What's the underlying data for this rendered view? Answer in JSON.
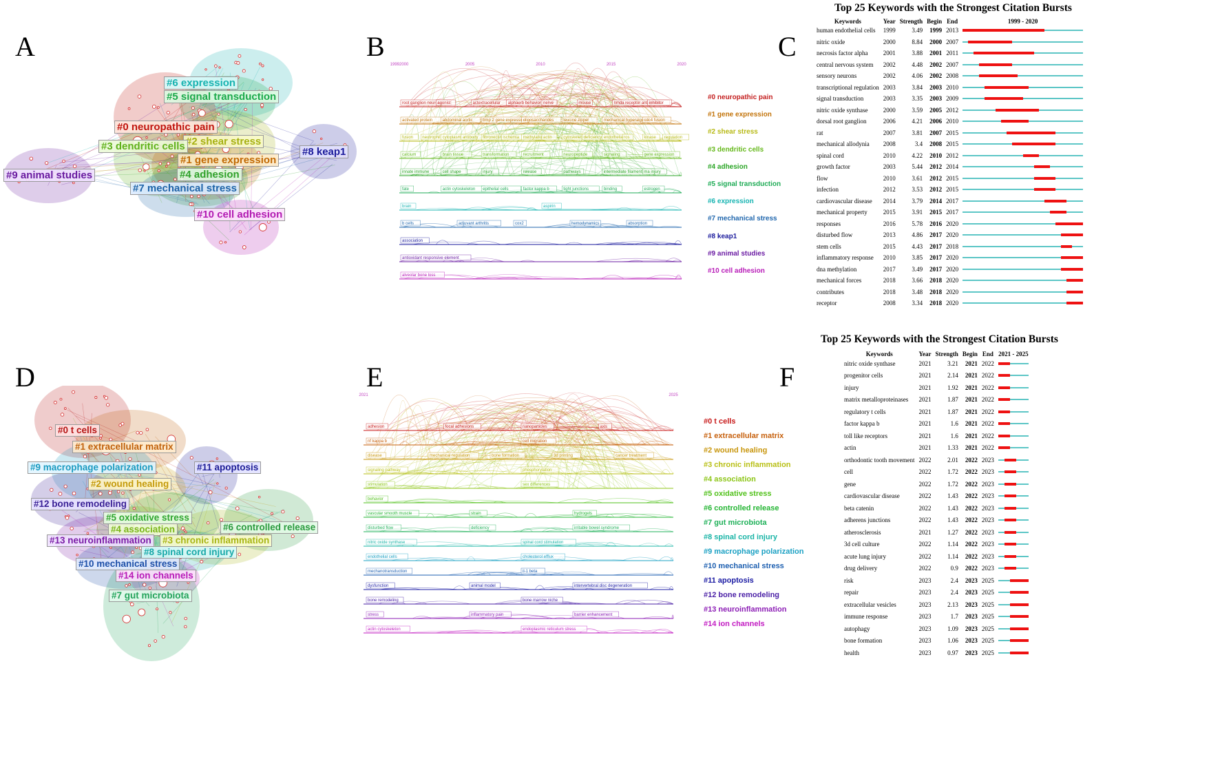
{
  "panels": {
    "A": {
      "letter": "A",
      "clusters": [
        {
          "label": "#6 expression",
          "color": "#17b2b0",
          "bg": "rgba(215,250,250,0.9)"
        },
        {
          "label": "#5 signal transduction",
          "color": "#1ba94a",
          "bg": "rgba(220,250,225,0.9)"
        },
        {
          "label": "#0 neuropathic pain",
          "color": "#c0150e",
          "bg": "rgba(255,230,220,0.9)"
        },
        {
          "label": "#2 shear stress",
          "color": "#a6b112",
          "bg": "rgba(250,250,200,0.9)"
        },
        {
          "label": "#3 dendritic cells",
          "color": "#5fb11a",
          "bg": "rgba(235,250,215,0.9)"
        },
        {
          "label": "#1 gene expression",
          "color": "#c16a05",
          "bg": "rgba(255,235,200,0.9)"
        },
        {
          "label": "#8 keap1",
          "color": "#1a1a9a",
          "bg": "rgba(225,225,255,0.9)"
        },
        {
          "label": "#4 adhesion",
          "color": "#2fa12a",
          "bg": "rgba(225,250,225,0.9)"
        },
        {
          "label": "#9 animal studies",
          "color": "#6a1ba0",
          "bg": "rgba(240,225,255,0.9)"
        },
        {
          "label": "#7 mechanical stress",
          "color": "#1d63a8",
          "bg": "rgba(220,235,255,0.9)"
        },
        {
          "label": "#10 cell adhesion",
          "color": "#b21ab2",
          "bg": "rgba(252,225,252,0.9)"
        }
      ]
    },
    "B": {
      "letter": "B",
      "years": [
        "19992000",
        "2005",
        "2010",
        "2015",
        "2020"
      ],
      "legend": [
        {
          "label": "#0 neuropathic pain",
          "color": "#c42020"
        },
        {
          "label": "#1 gene expression",
          "color": "#c27309"
        },
        {
          "label": "#2 shear stress",
          "color": "#b7b915"
        },
        {
          "label": "#3 dendritic cells",
          "color": "#65b81b"
        },
        {
          "label": "#4 adhesion",
          "color": "#2aa525"
        },
        {
          "label": "#5 signal transduction",
          "color": "#1eab55"
        },
        {
          "label": "#6 expression",
          "color": "#18b4b2"
        },
        {
          "label": "#7 mechanical stress",
          "color": "#1f66ad"
        },
        {
          "label": "#8 keap1",
          "color": "#1a1a9c"
        },
        {
          "label": "#9 animal studies",
          "color": "#6b1ca3"
        },
        {
          "label": "#10 cell adhesion",
          "color": "#b81bb8"
        }
      ],
      "terms": [
        "root ganglion neurons",
        "agonist",
        "actextracellular",
        "alphaerb behavior",
        "nerve",
        "mouse",
        "nmda receptor antagonist",
        "inhibitor",
        "activated protein",
        "abdominal aortic",
        "bmp 2 gene expression",
        "oligosaccharides",
        "leucine zipper",
        "mechanical hyperalgesia",
        "cdc4 fusion",
        "fusion",
        "neutrophil",
        "cytoplasm",
        "antibody",
        "fibronectin",
        "ischemia",
        "methylation",
        "actin",
        "cytoskeleton",
        "deficiency",
        "endothelial",
        "ros",
        "kinase",
        "regulation",
        "calcium",
        "brain tissue",
        "transformation",
        "recruitment",
        "neuropeptide",
        "signaling",
        "gene expression",
        "innate immune",
        "cell shape",
        "injury",
        "release",
        "pathways",
        "intermediate filaments",
        "ma injury",
        "fate",
        "actin cytoskeleton",
        "epithelial cells",
        "factor kappa b",
        "tight junctions",
        "binding",
        "estrogen",
        "brain",
        "aspirin",
        "b cells",
        "adjuvant arthritis",
        "cox2",
        "hemodynamics",
        "absorption",
        "association",
        "antioxidant responsive element",
        "alveolar bone loss",
        "cd44 variant isoforms"
      ]
    },
    "C": {
      "letter": "C",
      "title": "Top 25 Keywords with the Strongest Citation Bursts",
      "headers": [
        "Keywords",
        "Year",
        "Strength",
        "Begin",
        "End",
        "1999 - 2020"
      ],
      "range": [
        1999,
        2020
      ],
      "rows": [
        [
          "human endothelial cells",
          "1999",
          "3.49",
          "1999",
          "2013"
        ],
        [
          "nitric oxide",
          "2000",
          "8.84",
          "2000",
          "2007"
        ],
        [
          "necrosis factor alpha",
          "2001",
          "3.88",
          "2001",
          "2011"
        ],
        [
          "central nervous system",
          "2002",
          "4.48",
          "2002",
          "2007"
        ],
        [
          "sensory neurons",
          "2002",
          "4.06",
          "2002",
          "2008"
        ],
        [
          "transcriptional regulation",
          "2003",
          "3.84",
          "2003",
          "2010"
        ],
        [
          "signal transduction",
          "2003",
          "3.35",
          "2003",
          "2009"
        ],
        [
          "nitric oxide synthase",
          "2000",
          "3.59",
          "2005",
          "2012"
        ],
        [
          "dorsal root ganglion",
          "2006",
          "4.21",
          "2006",
          "2010"
        ],
        [
          "rat",
          "2007",
          "3.81",
          "2007",
          "2015"
        ],
        [
          "mechanical allodynia",
          "2008",
          "3.4",
          "2008",
          "2015"
        ],
        [
          "spinal cord",
          "2010",
          "4.22",
          "2010",
          "2012"
        ],
        [
          "growth factor",
          "2003",
          "5.44",
          "2012",
          "2014"
        ],
        [
          "flow",
          "2010",
          "3.61",
          "2012",
          "2015"
        ],
        [
          "infection",
          "2012",
          "3.53",
          "2012",
          "2015"
        ],
        [
          "cardiovascular disease",
          "2014",
          "3.79",
          "2014",
          "2017"
        ],
        [
          "mechanical property",
          "2015",
          "3.91",
          "2015",
          "2017"
        ],
        [
          "responses",
          "2016",
          "5.78",
          "2016",
          "2020"
        ],
        [
          "disturbed flow",
          "2013",
          "4.86",
          "2017",
          "2020"
        ],
        [
          "stem cells",
          "2015",
          "4.43",
          "2017",
          "2018"
        ],
        [
          "inflammatory response",
          "2010",
          "3.85",
          "2017",
          "2020"
        ],
        [
          "dna methylation",
          "2017",
          "3.49",
          "2017",
          "2020"
        ],
        [
          "mechanical forces",
          "2018",
          "3.66",
          "2018",
          "2020"
        ],
        [
          "contributes",
          "2018",
          "3.48",
          "2018",
          "2020"
        ],
        [
          "receptor",
          "2008",
          "3.34",
          "2018",
          "2020"
        ]
      ]
    },
    "D": {
      "letter": "D",
      "clusters": [
        {
          "label": "#0 t cells",
          "color": "#b51616",
          "bg": "rgba(255,225,225,0.9)"
        },
        {
          "label": "#1 extracellular matrix",
          "color": "#c0610a",
          "bg": "rgba(255,235,205,0.9)"
        },
        {
          "label": "#9 macrophage polarization",
          "color": "#1a9ac0",
          "bg": "rgba(225,245,255,0.9)"
        },
        {
          "label": "#11 apoptosis",
          "color": "#1c1c96",
          "bg": "rgba(225,225,255,0.9)"
        },
        {
          "label": "#2 wound healing",
          "color": "#c49a0a",
          "bg": "rgba(255,245,200,0.9)"
        },
        {
          "label": "#12 bone remodeling",
          "color": "#3a2196",
          "bg": "rgba(230,225,255,0.9)"
        },
        {
          "label": "#5 oxidative stress",
          "color": "#2fa52f",
          "bg": "rgba(230,252,225,0.9)"
        },
        {
          "label": "#6 controlled release",
          "color": "#2a9a3e",
          "bg": "rgba(225,250,230,0.9)"
        },
        {
          "label": "#4 association",
          "color": "#7bb51a",
          "bg": "rgba(240,252,215,0.9)"
        },
        {
          "label": "#13 neuroinflammation",
          "color": "#7a1ca6",
          "bg": "rgba(240,225,255,0.9)"
        },
        {
          "label": "#3 chronic inflammation",
          "color": "#a8b515",
          "bg": "rgba(250,252,205,0.9)"
        },
        {
          "label": "#8 spinal cord injury",
          "color": "#18a8a8",
          "bg": "rgba(215,250,250,0.9)"
        },
        {
          "label": "#10 mechanical stress",
          "color": "#1d4fa8",
          "bg": "rgba(225,235,255,0.9)"
        },
        {
          "label": "#14 ion channels",
          "color": "#b81ab8",
          "bg": "rgba(252,225,252,0.9)"
        },
        {
          "label": "#7 gut microbiota",
          "color": "#22a35a",
          "bg": "rgba(225,250,235,0.9)"
        }
      ]
    },
    "E": {
      "letter": "E",
      "years": [
        "2021",
        "2025"
      ],
      "legend": [
        {
          "label": "#0 t cells",
          "color": "#c81b1b"
        },
        {
          "label": "#1 extracellular matrix",
          "color": "#c65f0b"
        },
        {
          "label": "#2 wound healing",
          "color": "#c8960d"
        },
        {
          "label": "#3 chronic inflammation",
          "color": "#b8bf14"
        },
        {
          "label": "#4 association",
          "color": "#8cc516"
        },
        {
          "label": "#5 oxidative stress",
          "color": "#52c11c"
        },
        {
          "label": "#6 controlled release",
          "color": "#24b533"
        },
        {
          "label": "#7 gut microbiota",
          "color": "#1eb058"
        },
        {
          "label": "#8 spinal cord injury",
          "color": "#19b4a6"
        },
        {
          "label": "#9 macrophage polarization",
          "color": "#1aa0c3"
        },
        {
          "label": "#10 mechanical stress",
          "color": "#1d5fb0"
        },
        {
          "label": "#11 apoptosis",
          "color": "#1a1aa3"
        },
        {
          "label": "#12 bone remodeling",
          "color": "#4a1fa6"
        },
        {
          "label": "#13 neuroinflammation",
          "color": "#8c1db5"
        },
        {
          "label": "#14 ion channels",
          "color": "#c21bc2"
        }
      ],
      "terms": [
        [
          "adhesion",
          "focal adhesions",
          "nanoparticles",
          "axis"
        ],
        [
          "nf kappa b",
          "cell migration"
        ],
        [
          "disease",
          "mechanical regulation",
          "bone formation",
          "3d printing",
          "cancer treatment"
        ],
        [
          "signaling pathway",
          "phosphorylation"
        ],
        [
          "stimulation",
          "sex differences"
        ],
        [
          "behavior"
        ],
        [
          "vascular smooth muscle",
          "strain",
          "hydrogels"
        ],
        [
          "disturbed flow",
          "deficiency",
          "irritable bowel syndrome"
        ],
        [
          "nitric oxide synthase",
          "spinal cord stimulation"
        ],
        [
          "endothelial cells",
          "cholesterol efflux"
        ],
        [
          "mechanotransduction",
          "il-1 beta"
        ],
        [
          "dysfunction",
          "animal model",
          "intervertebral disc degeneration"
        ],
        [
          "bone remodeling",
          "bone marrow niche"
        ],
        [
          "stress",
          "inflammatory pain",
          "barrier enhancement"
        ],
        [
          "actin cytoskeleton",
          "endoplasmic reticulum stress"
        ]
      ]
    },
    "F": {
      "letter": "F",
      "title": "Top 25 Keywords with the Strongest Citation Bursts",
      "headers": [
        "Keywords",
        "Year",
        "Strength",
        "Begin",
        "End",
        "2021 - 2025"
      ],
      "range": [
        2021,
        2025
      ],
      "rows": [
        [
          "nitric oxide synthase",
          "2021",
          "3.21",
          "2021",
          "2022"
        ],
        [
          "progenitor cells",
          "2021",
          "2.14",
          "2021",
          "2022"
        ],
        [
          "injury",
          "2021",
          "1.92",
          "2021",
          "2022"
        ],
        [
          "matrix metalloproteinases",
          "2021",
          "1.87",
          "2021",
          "2022"
        ],
        [
          "regulatory t cells",
          "2021",
          "1.87",
          "2021",
          "2022"
        ],
        [
          "factor kappa b",
          "2021",
          "1.6",
          "2021",
          "2022"
        ],
        [
          "toll like receptors",
          "2021",
          "1.6",
          "2021",
          "2022"
        ],
        [
          "actin",
          "2021",
          "1.33",
          "2021",
          "2022"
        ],
        [
          "orthodontic tooth movement",
          "2022",
          "2.01",
          "2022",
          "2023"
        ],
        [
          "cell",
          "2022",
          "1.72",
          "2022",
          "2023"
        ],
        [
          "gene",
          "2022",
          "1.72",
          "2022",
          "2023"
        ],
        [
          "cardiovascular disease",
          "2022",
          "1.43",
          "2022",
          "2023"
        ],
        [
          "beta catenin",
          "2022",
          "1.43",
          "2022",
          "2023"
        ],
        [
          "adherens junctions",
          "2022",
          "1.43",
          "2022",
          "2023"
        ],
        [
          "atherosclerosis",
          "2021",
          "1.27",
          "2022",
          "2023"
        ],
        [
          "3d cell culture",
          "2022",
          "1.14",
          "2022",
          "2023"
        ],
        [
          "acute lung injury",
          "2022",
          "1.14",
          "2022",
          "2023"
        ],
        [
          "drug delivery",
          "2022",
          "0.9",
          "2022",
          "2023"
        ],
        [
          "risk",
          "2023",
          "2.4",
          "2023",
          "2025"
        ],
        [
          "repair",
          "2023",
          "2.4",
          "2023",
          "2025"
        ],
        [
          "extracellular vesicles",
          "2023",
          "2.13",
          "2023",
          "2025"
        ],
        [
          "immune response",
          "2023",
          "1.7",
          "2023",
          "2025"
        ],
        [
          "autophagy",
          "2023",
          "1.09",
          "2023",
          "2025"
        ],
        [
          "bone formation",
          "2023",
          "1.06",
          "2023",
          "2025"
        ],
        [
          "health",
          "2023",
          "0.97",
          "2023",
          "2025"
        ]
      ]
    }
  }
}
